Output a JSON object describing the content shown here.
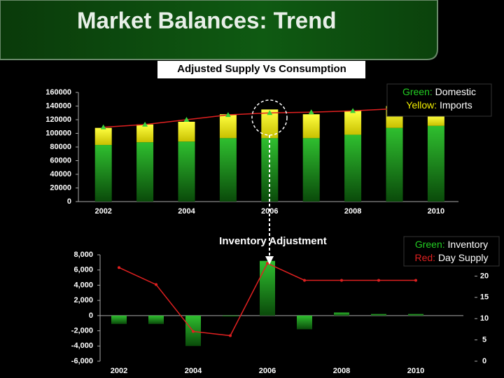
{
  "header": {
    "title": "Market Balances: Trend"
  },
  "chart_data": [
    {
      "type": "bar",
      "stacked": true,
      "title": "Adjusted Supply Vs Consumption",
      "categories": [
        "2002",
        null,
        "2004",
        null,
        "2006",
        null,
        "2008",
        null,
        "2010"
      ],
      "series": [
        {
          "name": "Domestic",
          "color_label": "Green:",
          "color": "#1e9e1e",
          "values": [
            83000,
            87000,
            88000,
            93000,
            93000,
            93000,
            98000,
            108000,
            111000
          ]
        },
        {
          "name": "Imports",
          "color_label": "Yellow:",
          "color": "#f4f000",
          "values": [
            25000,
            26000,
            29000,
            35000,
            42000,
            35000,
            35000,
            32000,
            15000
          ]
        },
        {
          "type": "line",
          "color": "#e02020",
          "marker_color": "#3bd13b",
          "values": [
            109000,
            113000,
            120000,
            127000,
            130000,
            131000,
            133000,
            136000,
            140000
          ]
        }
      ],
      "ylim": [
        0,
        160000
      ],
      "yticks": [
        0,
        20000,
        40000,
        60000,
        80000,
        100000,
        120000,
        140000,
        160000
      ]
    },
    {
      "type": "bar",
      "title": "Inventory Adjustment",
      "categories": [
        "2002",
        null,
        "2004",
        null,
        "2006",
        null,
        "2008",
        null,
        "2010"
      ],
      "series": [
        {
          "name": "Inventory",
          "color_label": "Green:",
          "color": "#1e9e1e",
          "values": [
            -1100,
            -1100,
            -4000,
            -100,
            7200,
            -1800,
            400,
            200,
            200
          ]
        },
        {
          "name": "Day Supply",
          "color_label": "Red:",
          "type": "line",
          "axis": "y2",
          "color": "#e02020",
          "values": [
            22,
            18,
            7,
            6,
            23,
            19,
            19,
            19,
            19
          ]
        }
      ],
      "ylim": [
        -6000,
        8000
      ],
      "yticks": [
        {
          "value": -6000,
          "label": "-6,000"
        },
        {
          "value": -4000,
          "label": "-4,000"
        },
        {
          "value": -2000,
          "label": "-2,000"
        },
        0,
        {
          "value": 2000,
          "label": "2,000"
        },
        {
          "value": 4000,
          "label": "4,000"
        },
        {
          "value": 6000,
          "label": "6,000"
        },
        {
          "value": 8000,
          "label": "8,000"
        }
      ],
      "y2lim": [
        0,
        25
      ],
      "y2ticks": [
        0,
        5,
        10,
        15,
        20
      ]
    }
  ]
}
